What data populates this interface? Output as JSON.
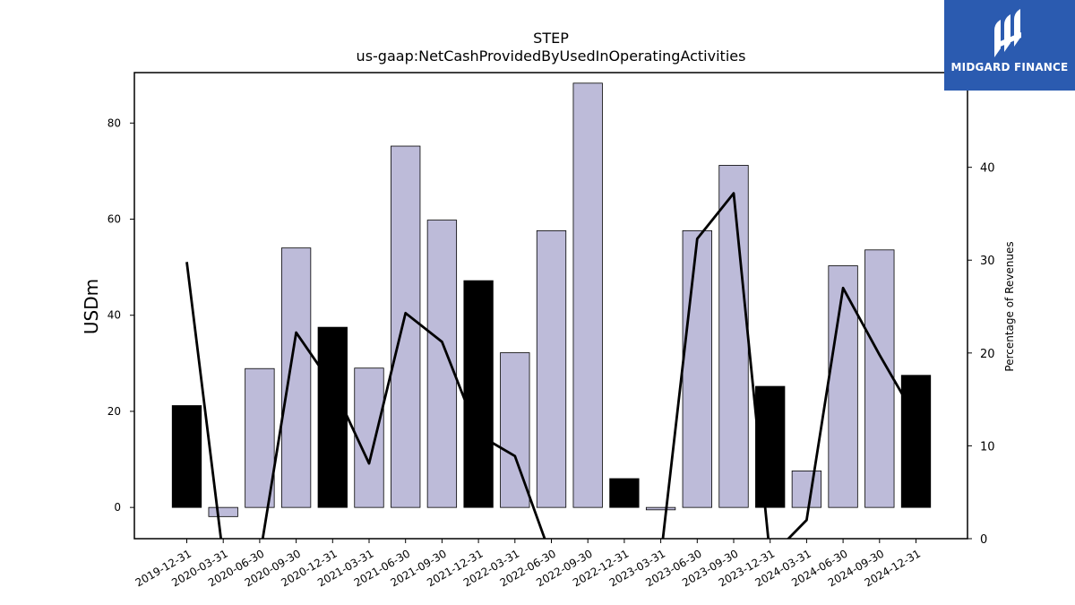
{
  "chart_data": {
    "type": "bar",
    "title": "STEP",
    "subtitle": "us-gaap:NetCashProvidedByUsedInOperatingActivities",
    "ylabel": "USDm",
    "y2label": "Percentage of Revenues",
    "ylim": [
      -6.5,
      90.5
    ],
    "y2lim": [
      0,
      50.2
    ],
    "yticks": [
      0,
      20,
      40,
      60,
      80
    ],
    "y2ticks": [
      0,
      10,
      20,
      30,
      40
    ],
    "categories": [
      "2019-12-31",
      "2020-03-31",
      "2020-06-30",
      "2020-09-30",
      "2020-12-31",
      "2021-03-31",
      "2021-06-30",
      "2021-09-30",
      "2021-12-31",
      "2022-03-31",
      "2022-06-30",
      "2022-09-30",
      "2022-12-31",
      "2023-03-31",
      "2023-06-30",
      "2023-09-30",
      "2023-12-31",
      "2024-03-31",
      "2024-06-30",
      "2024-09-30",
      "2024-12-31"
    ],
    "values": [
      21.2,
      -1.9,
      28.9,
      54.0,
      37.5,
      29.0,
      75.2,
      59.8,
      47.2,
      32.2,
      57.6,
      88.3,
      6.0,
      -0.5,
      57.6,
      71.2,
      25.2,
      7.6,
      50.3,
      53.6,
      27.5
    ],
    "highlight": [
      true,
      false,
      false,
      false,
      true,
      false,
      false,
      false,
      true,
      false,
      false,
      false,
      true,
      false,
      false,
      false,
      true,
      false,
      false,
      false,
      true
    ],
    "line_values": [
      29.8,
      -2,
      -2,
      22.2,
      16.5,
      8.1,
      24.3,
      21.2,
      11.2,
      8.9,
      -2,
      null,
      null,
      -2,
      32.3,
      37.2,
      -2,
      2.0,
      27.0,
      19.8,
      13.0
    ],
    "colors": {
      "bar": "#bdbbd9",
      "highlight_bar": "#000000",
      "line": "#000000"
    }
  },
  "logo": {
    "text": "MIDGARD FINANCE",
    "background": "#2b5bb0"
  }
}
